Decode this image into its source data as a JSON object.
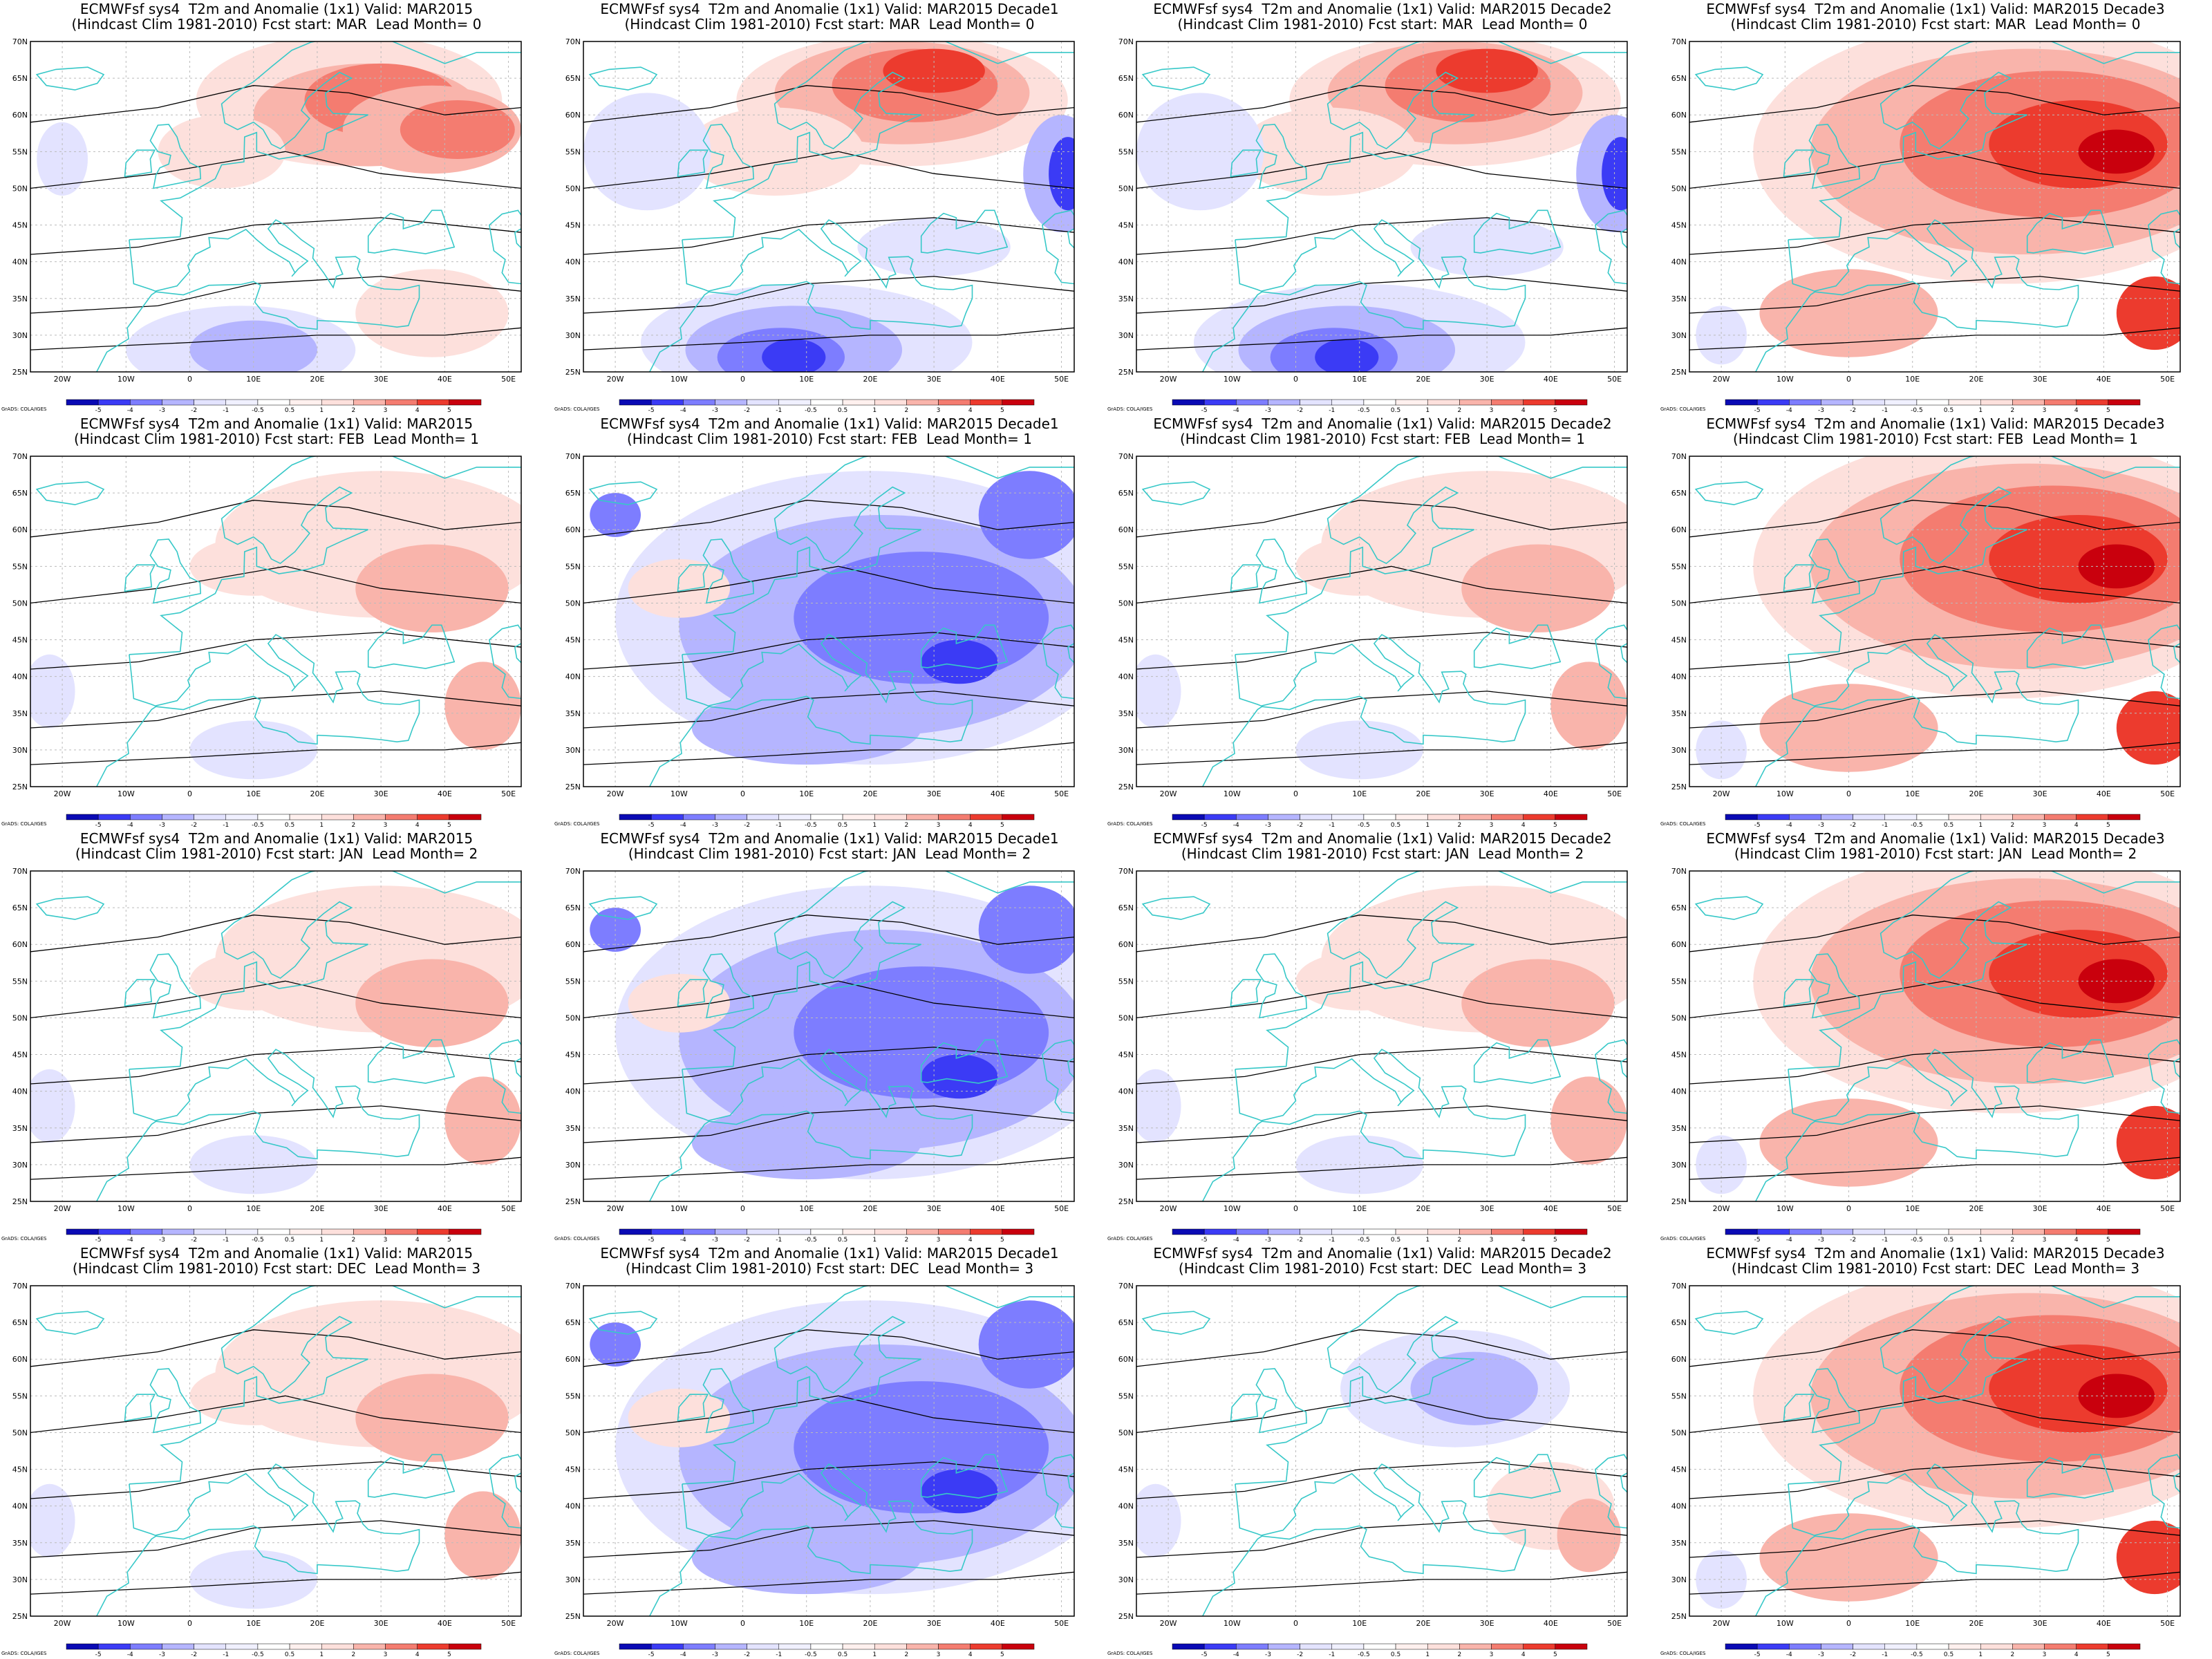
{
  "colors": {
    "warm": [
      "#fde0dc",
      "#f9b4ab",
      "#f47c70",
      "#ec3b2e",
      "#c9000d"
    ],
    "cool": [
      "#e3e3ff",
      "#b5b5ff",
      "#7d7dff",
      "#3b3bf5",
      "#0a0ab4"
    ],
    "coast": "#37c8c8",
    "contour": "#000000"
  },
  "axes": {
    "lat_labels": [
      "70N",
      "65N",
      "60N",
      "55N",
      "50N",
      "45N",
      "40N",
      "35N",
      "30N",
      "25N"
    ],
    "lon_labels": [
      "20W",
      "10W",
      "0",
      "10E",
      "20E",
      "30E",
      "40E",
      "50E"
    ]
  },
  "colorbar": {
    "ticks": [
      "-5",
      "-4",
      "-3",
      "-2",
      "-1",
      "-0.5",
      "0.5",
      "1",
      "2",
      "3",
      "4",
      "5"
    ],
    "credit": "GrADS: COLA/IGES"
  },
  "panels": [
    {
      "title1": "ECMWFsf sys4  T2m and Anomalie (1x1) Valid: MAR2015",
      "title2": "(Hindcast Clim 1981-2010) Fcst start: MAR  Lead Month= 0",
      "pattern": "warm-north"
    },
    {
      "title1": "ECMWFsf sys4  T2m and Anomalie (1x1) Valid: MAR2015 Decade1",
      "title2": "(Hindcast Clim 1981-2010) Fcst start: MAR  Lead Month= 0",
      "pattern": "warm-north-cold-south"
    },
    {
      "title1": "ECMWFsf sys4  T2m and Anomalie (1x1) Valid: MAR2015 Decade2",
      "title2": "(Hindcast Clim 1981-2010) Fcst start: MAR  Lead Month= 0",
      "pattern": "warm-north-cold-south"
    },
    {
      "title1": "ECMWFsf sys4  T2m and Anomalie (1x1) Valid: MAR2015 Decade3",
      "title2": "(Hindcast Clim 1981-2010) Fcst start: MAR  Lead Month= 0",
      "pattern": "warm-east"
    },
    {
      "title1": "ECMWFsf sys4  T2m and Anomalie (1x1) Valid: MAR2015",
      "title2": "(Hindcast Clim 1981-2010) Fcst start: FEB  Lead Month= 1",
      "pattern": "weak-warm"
    },
    {
      "title1": "ECMWFsf sys4  T2m and Anomalie (1x1) Valid: MAR2015 Decade1",
      "title2": "(Hindcast Clim 1981-2010) Fcst start: FEB  Lead Month= 1",
      "pattern": "cold"
    },
    {
      "title1": "ECMWFsf sys4  T2m and Anomalie (1x1) Valid: MAR2015 Decade2",
      "title2": "(Hindcast Clim 1981-2010) Fcst start: FEB  Lead Month= 1",
      "pattern": "weak-warm"
    },
    {
      "title1": "ECMWFsf sys4  T2m and Anomalie (1x1) Valid: MAR2015 Decade3",
      "title2": "(Hindcast Clim 1981-2010) Fcst start: FEB  Lead Month= 1",
      "pattern": "warm-east"
    },
    {
      "title1": "ECMWFsf sys4  T2m and Anomalie (1x1) Valid: MAR2015",
      "title2": "(Hindcast Clim 1981-2010) Fcst start: JAN  Lead Month= 2",
      "pattern": "weak-warm"
    },
    {
      "title1": "ECMWFsf sys4  T2m and Anomalie (1x1) Valid: MAR2015 Decade1",
      "title2": "(Hindcast Clim 1981-2010) Fcst start: JAN  Lead Month= 2",
      "pattern": "cold"
    },
    {
      "title1": "ECMWFsf sys4  T2m and Anomalie (1x1) Valid: MAR2015 Decade2",
      "title2": "(Hindcast Clim 1981-2010) Fcst start: JAN  Lead Month= 2",
      "pattern": "weak-warm"
    },
    {
      "title1": "ECMWFsf sys4  T2m and Anomalie (1x1) Valid: MAR2015 Decade3",
      "title2": "(Hindcast Clim 1981-2010) Fcst start: JAN  Lead Month= 2",
      "pattern": "warm-east"
    },
    {
      "title1": "ECMWFsf sys4  T2m and Anomalie (1x1) Valid: MAR2015",
      "title2": "(Hindcast Clim 1981-2010) Fcst start: DEC  Lead Month= 3",
      "pattern": "weak-warm"
    },
    {
      "title1": "ECMWFsf sys4  T2m and Anomalie (1x1) Valid: MAR2015 Decade1",
      "title2": "(Hindcast Clim 1981-2010) Fcst start: DEC  Lead Month= 3",
      "pattern": "cold"
    },
    {
      "title1": "ECMWFsf sys4  T2m and Anomalie (1x1) Valid: MAR2015 Decade2",
      "title2": "(Hindcast Clim 1981-2010) Fcst start: DEC  Lead Month= 3",
      "pattern": "weak-cold"
    },
    {
      "title1": "ECMWFsf sys4  T2m and Anomalie (1x1) Valid: MAR2015 Decade3",
      "title2": "(Hindcast Clim 1981-2010) Fcst start: DEC  Lead Month= 3",
      "pattern": "warm-east"
    }
  ]
}
